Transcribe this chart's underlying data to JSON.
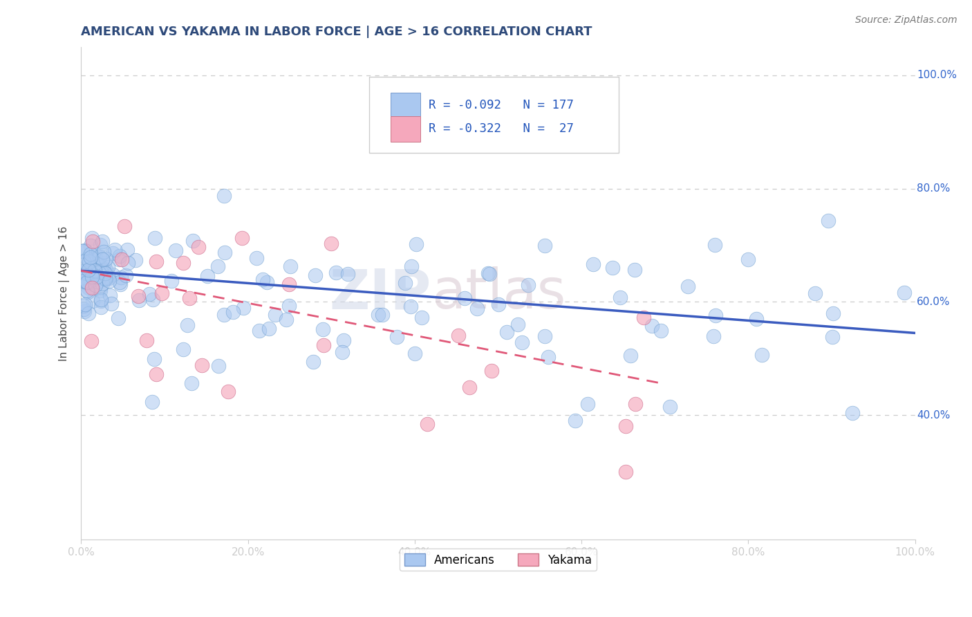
{
  "title": "AMERICAN VS YAKAMA IN LABOR FORCE | AGE > 16 CORRELATION CHART",
  "source_text": "Source: ZipAtlas.com",
  "ylabel": "In Labor Force | Age > 16",
  "watermark_left": "ZIP",
  "watermark_right": "atlas",
  "xlim": [
    0.0,
    1.0
  ],
  "ylim": [
    0.18,
    1.05
  ],
  "xticks": [
    0.0,
    0.2,
    0.4,
    0.6,
    0.8,
    1.0
  ],
  "xtick_labels": [
    "0.0%",
    "20.0%",
    "40.0%",
    "60.0%",
    "80.0%",
    "100.0%"
  ],
  "yticks": [
    0.4,
    0.6,
    0.8,
    1.0
  ],
  "ytick_labels": [
    "40.0%",
    "60.0%",
    "80.0%",
    "100.0%"
  ],
  "legend_entries": [
    {
      "label": "Americans",
      "color": "#aac8f0",
      "R": "-0.092",
      "N": "177"
    },
    {
      "label": "Yakama",
      "color": "#f5a8bc",
      "R": "-0.322",
      "N": " 27"
    }
  ],
  "blue_line_color": "#3a5bbf",
  "pink_line_color": "#e05878",
  "title_color": "#2e4a7a",
  "source_color": "#777777",
  "axis_color": "#cccccc",
  "grid_color": "#cccccc",
  "R_americans": -0.092,
  "N_americans": 177,
  "R_yakama": -0.322,
  "N_yakama": 27,
  "blue_trend_x0": 0.0,
  "blue_trend_y0": 0.655,
  "blue_trend_x1": 1.0,
  "blue_trend_y1": 0.545,
  "pink_trend_x0": 0.0,
  "pink_trend_y0": 0.655,
  "pink_trend_x1": 0.7,
  "pink_trend_y1": 0.455
}
